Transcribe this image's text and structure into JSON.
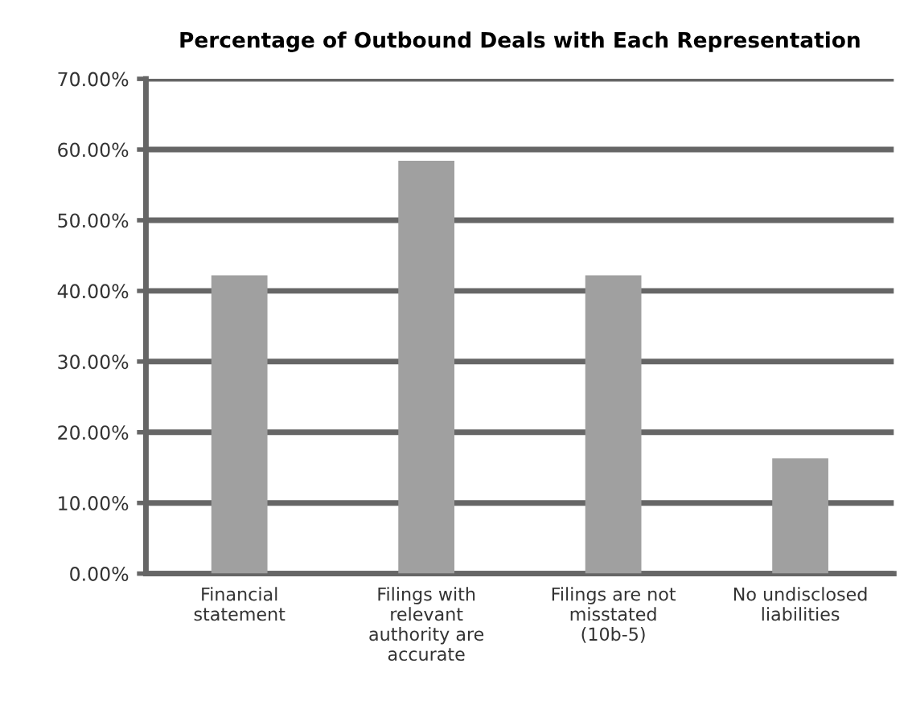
{
  "chart_data": {
    "type": "bar",
    "title": "Percentage of Outbound Deals with Each Representation",
    "categories": [
      "Financial\nstatement",
      "Filings with\nrelevant\nauthority are\naccurate",
      "Filings are not\nmisstated\n(10b-5)",
      "No undisclosed\nliabilities"
    ],
    "values": [
      42.2,
      58.4,
      42.2,
      16.3
    ],
    "color": "#a0a0a0",
    "ylim": [
      0,
      70
    ],
    "yticks": [
      {
        "value": 0,
        "label": "0.00%"
      },
      {
        "value": 10,
        "label": "10.00%"
      },
      {
        "value": 20,
        "label": "20.00%"
      },
      {
        "value": 30,
        "label": "30.00%"
      },
      {
        "value": 40,
        "label": "40.00%"
      },
      {
        "value": 50,
        "label": "50.00%"
      },
      {
        "value": 60,
        "label": "60.00%"
      },
      {
        "value": 70,
        "label": "70.00%"
      }
    ],
    "grid": "y"
  }
}
